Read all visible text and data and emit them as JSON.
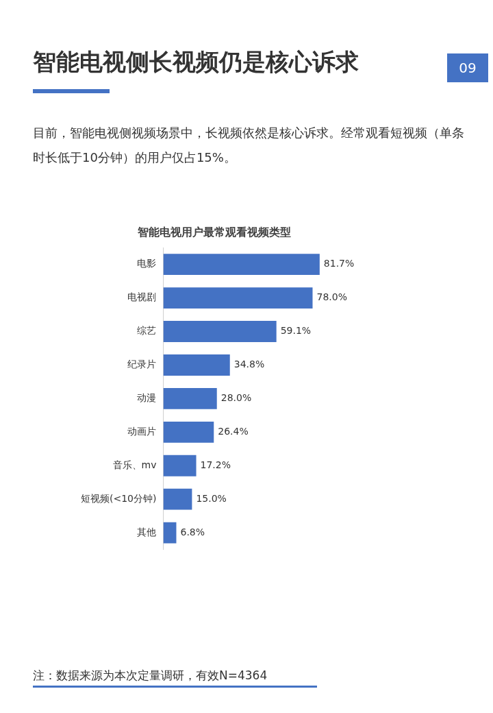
{
  "chart_data": {
    "type": "bar",
    "orientation": "horizontal",
    "title": "智能电视用户最常观看视频类型",
    "categories": [
      "电影",
      "电视剧",
      "综艺",
      "纪录片",
      "动漫",
      "动画片",
      "音乐、mv",
      "短视频(<10分钟)",
      "其他"
    ],
    "values": [
      81.7,
      78.0,
      59.1,
      34.8,
      28.0,
      26.4,
      17.2,
      15.0,
      6.8
    ],
    "value_labels": [
      "81.7%",
      "78.0%",
      "59.1%",
      "34.8%",
      "28.0%",
      "26.4%",
      "17.2%",
      "15.0%",
      "6.8%"
    ],
    "color": "#4472c4",
    "grid": false,
    "tick_labels": "y",
    "legend": false,
    "annotations": [
      "智能电视侧长视频仍是核心诉求",
      "目前，智能电视侧视频场景中，长视频依然是核心诉求。经常观看短视频（单条时长低于10分钟）的用户仅占15%。",
      "09",
      "注：数据来源为本次定量调研，有效N=4364"
    ]
  }
}
